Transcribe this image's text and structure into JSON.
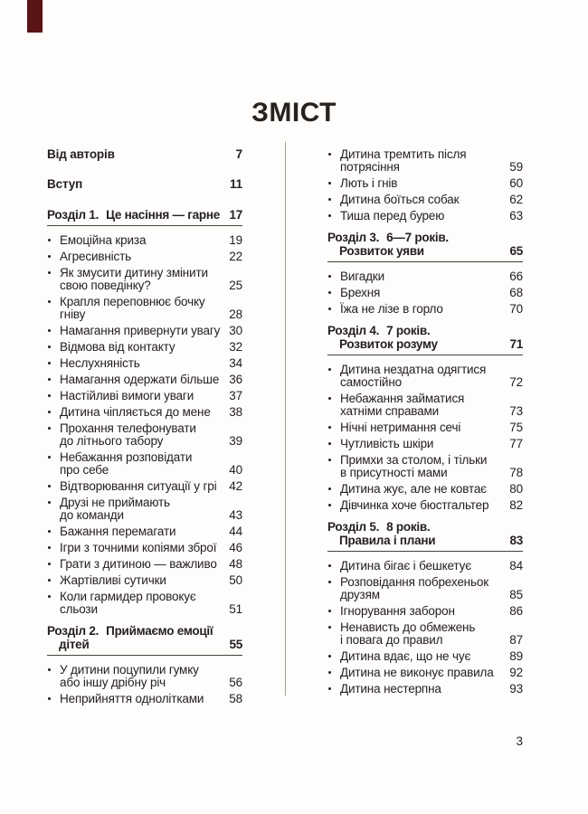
{
  "page": {
    "title": "ЗМІСТ",
    "folio": "3",
    "accent_color": "#5a1416",
    "text_color": "#242020",
    "divider_color": "#a09e92"
  },
  "toc": {
    "left_column": [
      {
        "type": "front",
        "text": "Від авторів",
        "page": "7"
      },
      {
        "type": "front",
        "text": "Вступ",
        "page": "11"
      },
      {
        "type": "chapter",
        "num": "Розділ 1.",
        "line1": "Це насіння — гарне",
        "page": "17"
      },
      {
        "type": "bullet",
        "lines": [
          "Емоційна криза"
        ],
        "page": "19"
      },
      {
        "type": "bullet",
        "lines": [
          "Агресивність"
        ],
        "page": "22"
      },
      {
        "type": "bullet",
        "lines": [
          "Як змусити дитину змінити",
          "свою поведінку?"
        ],
        "page": "25"
      },
      {
        "type": "bullet",
        "lines": [
          "Крапля переповнює бочку",
          "гніву"
        ],
        "page": "28"
      },
      {
        "type": "bullet",
        "lines": [
          "Намагання привернути увагу"
        ],
        "page": "30"
      },
      {
        "type": "bullet",
        "lines": [
          "Відмова від контакту"
        ],
        "page": "32"
      },
      {
        "type": "bullet",
        "lines": [
          "Неслухняність"
        ],
        "page": "34"
      },
      {
        "type": "bullet",
        "lines": [
          "Намагання одержати більше"
        ],
        "page": "36"
      },
      {
        "type": "bullet",
        "lines": [
          "Настійливі вимоги уваги"
        ],
        "page": "37"
      },
      {
        "type": "bullet",
        "lines": [
          "Дитина чіпляється до мене"
        ],
        "page": "38"
      },
      {
        "type": "bullet",
        "lines": [
          "Прохання телефонувати",
          "до літнього табору"
        ],
        "page": "39"
      },
      {
        "type": "bullet",
        "lines": [
          "Небажання розповідати",
          "про себе"
        ],
        "page": "40"
      },
      {
        "type": "bullet",
        "lines": [
          "Відтворювання ситуації у грі"
        ],
        "page": "42"
      },
      {
        "type": "bullet",
        "lines": [
          "Друзі не приймають",
          "до команди"
        ],
        "page": "43"
      },
      {
        "type": "bullet",
        "lines": [
          "Бажання перемагати"
        ],
        "page": "44"
      },
      {
        "type": "bullet",
        "lines": [
          "Ігри з точними копіями зброї"
        ],
        "page": "46"
      },
      {
        "type": "bullet",
        "lines": [
          "Грати з дитиною — важливо"
        ],
        "page": "48"
      },
      {
        "type": "bullet",
        "lines": [
          "Жартівливі сутички"
        ],
        "page": "50"
      },
      {
        "type": "bullet",
        "lines": [
          "Коли гармидер провокує",
          "сльози"
        ],
        "page": "51"
      },
      {
        "type": "chapter",
        "num": "Розділ 2.",
        "line1": "Приймаємо емоції",
        "line2": "дітей",
        "page": "55"
      },
      {
        "type": "bullet",
        "lines": [
          "У дитини поцупили гумку",
          "або іншу дрібну річ"
        ],
        "page": "56"
      },
      {
        "type": "bullet",
        "lines": [
          "Неприйняття однолітками"
        ],
        "page": "58"
      }
    ],
    "right_column": [
      {
        "type": "bullet",
        "lines": [
          "Дитина тремтить після",
          "потрясіння"
        ],
        "page": "59"
      },
      {
        "type": "bullet",
        "lines": [
          "Лють і гнів"
        ],
        "page": "60"
      },
      {
        "type": "bullet",
        "lines": [
          "Дитина боїться собак"
        ],
        "page": "62"
      },
      {
        "type": "bullet",
        "lines": [
          "Тиша перед бурею"
        ],
        "page": "63"
      },
      {
        "type": "chapter",
        "num": "Розділ 3.",
        "line1": "6—7 років.",
        "line2": "Розвиток уяви",
        "page": "65"
      },
      {
        "type": "bullet",
        "lines": [
          "Вигадки"
        ],
        "page": "66"
      },
      {
        "type": "bullet",
        "lines": [
          "Брехня"
        ],
        "page": "68"
      },
      {
        "type": "bullet",
        "lines": [
          "Їжа не лізе в горло"
        ],
        "page": "70"
      },
      {
        "type": "chapter",
        "num": "Розділ 4.",
        "line1": "7 років.",
        "line2": "Розвиток розуму",
        "page": "71"
      },
      {
        "type": "bullet",
        "lines": [
          "Дитина нездатна одягтися",
          "самостійно"
        ],
        "page": "72"
      },
      {
        "type": "bullet",
        "lines": [
          "Небажання займатися",
          "хатніми справами"
        ],
        "page": "73"
      },
      {
        "type": "bullet",
        "lines": [
          "Нічні нетримання сечі"
        ],
        "page": "75"
      },
      {
        "type": "bullet",
        "lines": [
          "Чутливість шкіри"
        ],
        "page": "77"
      },
      {
        "type": "bullet",
        "lines": [
          "Примхи за столом, і тільки",
          "в присутності мами"
        ],
        "page": "78"
      },
      {
        "type": "bullet",
        "lines": [
          "Дитина жує, але не ковтає"
        ],
        "page": "80"
      },
      {
        "type": "bullet",
        "lines": [
          "Дівчинка хоче бюстгальтер"
        ],
        "page": "82"
      },
      {
        "type": "chapter",
        "num": "Розділ 5.",
        "line1": "8 років.",
        "line2": "Правила і плани",
        "page": "83"
      },
      {
        "type": "bullet",
        "lines": [
          "Дитина бігає і бешкетує"
        ],
        "page": "84"
      },
      {
        "type": "bullet",
        "lines": [
          "Розповідання побрехеньок",
          "друзям"
        ],
        "page": "85"
      },
      {
        "type": "bullet",
        "lines": [
          "Ігнорування заборон"
        ],
        "page": "86"
      },
      {
        "type": "bullet",
        "lines": [
          "Ненависть до обмежень",
          "і повага до правил"
        ],
        "page": "87"
      },
      {
        "type": "bullet",
        "lines": [
          "Дитина вдає, що не чує"
        ],
        "page": "89"
      },
      {
        "type": "bullet",
        "lines": [
          "Дитина не виконує правила"
        ],
        "page": "92"
      },
      {
        "type": "bullet",
        "lines": [
          "Дитина нестерпна"
        ],
        "page": "93"
      }
    ]
  }
}
